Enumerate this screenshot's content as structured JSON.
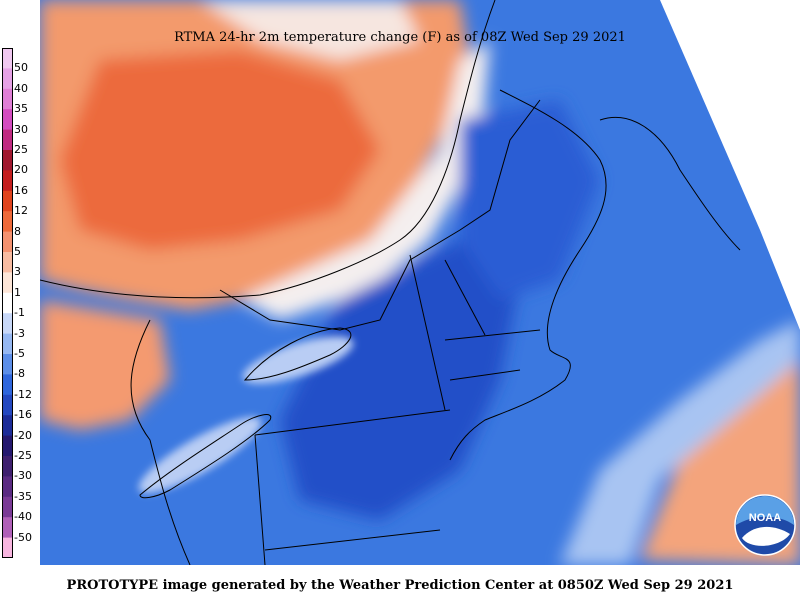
{
  "title": "RTMA 24-hr 2m temperature change (F) as of 08Z Wed Sep 29 2021",
  "footer": "PROTOTYPE image generated by the Weather Prediction Center at 0850Z Wed Sep 29 2021",
  "logo_text": "NOAA",
  "legend": {
    "labels": [
      "50",
      "40",
      "35",
      "30",
      "25",
      "20",
      "16",
      "12",
      "8",
      "5",
      "3",
      "1",
      "-1",
      "-3",
      "-5",
      "-8",
      "-12",
      "-16",
      "-20",
      "-25",
      "-30",
      "-35",
      "-40",
      "-50"
    ],
    "colors": [
      "#f0c8f0",
      "#e6a2e6",
      "#e07fd6",
      "#d44cc0",
      "#c02a80",
      "#a0182e",
      "#c41e1e",
      "#e0441e",
      "#ee6a3a",
      "#f49270",
      "#f8bca2",
      "#fde6d8",
      "#ffffff",
      "#c8d8f8",
      "#96b8f2",
      "#5c8ee8",
      "#2f66dc",
      "#2448c0",
      "#1c2c98",
      "#24186e",
      "#3e1f6e",
      "#5a2a82",
      "#7a3a96",
      "#b060b8",
      "#f8b6e0"
    ]
  },
  "colors": {
    "warm": "#f4885c",
    "warm_light": "#f8b896",
    "cold": "#2f66dc",
    "cold_mid": "#5c8ee8",
    "cold_light": "#96b8f2",
    "cold_dark": "#1c3ca8"
  }
}
